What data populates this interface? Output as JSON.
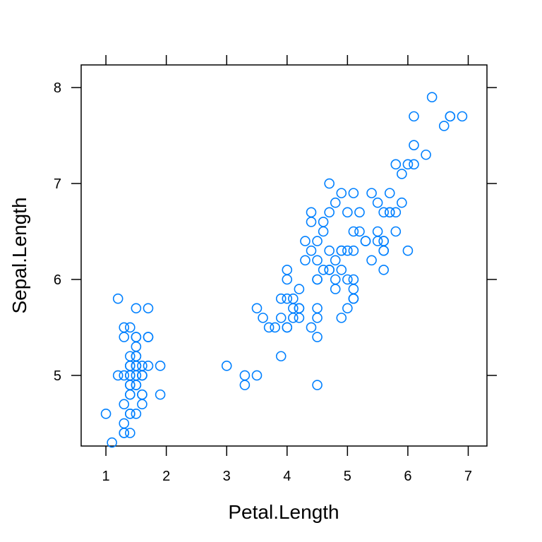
{
  "chart_data": {
    "type": "scatter",
    "title": "",
    "xlabel": "Petal.Length",
    "ylabel": "Sepal.Length",
    "xlim": [
      0.59,
      7.31
    ],
    "ylim": [
      4.264,
      8.236
    ],
    "x_ticks": [
      1,
      2,
      3,
      4,
      5,
      6,
      7
    ],
    "y_ticks": [
      5,
      6,
      7,
      8
    ],
    "x_tick_labels": [
      "1",
      "2",
      "3",
      "4",
      "5",
      "6",
      "7"
    ],
    "y_tick_labels": [
      "5",
      "6",
      "7",
      "8"
    ],
    "grid": false,
    "marker": "open-circle",
    "color": "#0080ff",
    "points": [
      [
        1.4,
        5.1
      ],
      [
        1.4,
        4.9
      ],
      [
        1.3,
        4.7
      ],
      [
        1.5,
        4.6
      ],
      [
        1.4,
        5.0
      ],
      [
        1.7,
        5.4
      ],
      [
        1.4,
        4.6
      ],
      [
        1.5,
        5.0
      ],
      [
        1.4,
        4.4
      ],
      [
        1.5,
        4.9
      ],
      [
        1.5,
        5.4
      ],
      [
        1.6,
        4.8
      ],
      [
        1.4,
        4.8
      ],
      [
        1.1,
        4.3
      ],
      [
        1.2,
        5.8
      ],
      [
        1.5,
        5.7
      ],
      [
        1.3,
        5.4
      ],
      [
        1.4,
        5.1
      ],
      [
        1.7,
        5.7
      ],
      [
        1.5,
        5.1
      ],
      [
        1.7,
        5.4
      ],
      [
        1.5,
        5.1
      ],
      [
        1.0,
        4.6
      ],
      [
        1.7,
        5.1
      ],
      [
        1.9,
        4.8
      ],
      [
        1.6,
        5.0
      ],
      [
        1.6,
        5.0
      ],
      [
        1.5,
        5.2
      ],
      [
        1.4,
        5.2
      ],
      [
        1.6,
        4.7
      ],
      [
        1.6,
        4.8
      ],
      [
        1.5,
        5.4
      ],
      [
        1.5,
        5.2
      ],
      [
        1.4,
        5.5
      ],
      [
        1.5,
        4.9
      ],
      [
        1.2,
        5.0
      ],
      [
        1.3,
        5.5
      ],
      [
        1.4,
        4.9
      ],
      [
        1.3,
        4.4
      ],
      [
        1.5,
        5.1
      ],
      [
        1.3,
        5.0
      ],
      [
        1.3,
        4.5
      ],
      [
        1.3,
        4.4
      ],
      [
        1.6,
        5.0
      ],
      [
        1.9,
        5.1
      ],
      [
        1.4,
        4.8
      ],
      [
        1.6,
        5.1
      ],
      [
        1.4,
        4.6
      ],
      [
        1.5,
        5.3
      ],
      [
        1.4,
        5.0
      ],
      [
        4.7,
        7.0
      ],
      [
        4.5,
        6.4
      ],
      [
        4.9,
        6.9
      ],
      [
        4.0,
        5.5
      ],
      [
        4.6,
        6.5
      ],
      [
        4.5,
        5.7
      ],
      [
        4.7,
        6.3
      ],
      [
        3.3,
        4.9
      ],
      [
        4.6,
        6.6
      ],
      [
        3.9,
        5.2
      ],
      [
        3.5,
        5.0
      ],
      [
        4.2,
        5.9
      ],
      [
        4.0,
        6.0
      ],
      [
        4.7,
        6.1
      ],
      [
        3.6,
        5.6
      ],
      [
        4.4,
        6.7
      ],
      [
        4.5,
        5.6
      ],
      [
        4.1,
        5.8
      ],
      [
        4.5,
        6.2
      ],
      [
        3.9,
        5.6
      ],
      [
        4.8,
        5.9
      ],
      [
        4.0,
        6.1
      ],
      [
        4.9,
        6.3
      ],
      [
        4.7,
        6.1
      ],
      [
        4.3,
        6.4
      ],
      [
        4.4,
        6.6
      ],
      [
        4.8,
        6.8
      ],
      [
        5.0,
        6.7
      ],
      [
        4.5,
        6.0
      ],
      [
        3.5,
        5.7
      ],
      [
        3.8,
        5.5
      ],
      [
        3.7,
        5.5
      ],
      [
        3.9,
        5.8
      ],
      [
        5.1,
        6.0
      ],
      [
        4.5,
        5.4
      ],
      [
        4.5,
        6.0
      ],
      [
        4.7,
        6.7
      ],
      [
        4.4,
        6.3
      ],
      [
        4.1,
        5.6
      ],
      [
        4.0,
        5.5
      ],
      [
        4.4,
        5.5
      ],
      [
        4.6,
        6.1
      ],
      [
        4.0,
        5.8
      ],
      [
        3.3,
        5.0
      ],
      [
        4.2,
        5.6
      ],
      [
        4.2,
        5.7
      ],
      [
        4.2,
        5.7
      ],
      [
        4.3,
        6.2
      ],
      [
        3.0,
        5.1
      ],
      [
        4.1,
        5.7
      ],
      [
        6.0,
        6.3
      ],
      [
        5.1,
        5.8
      ],
      [
        5.9,
        7.1
      ],
      [
        5.6,
        6.3
      ],
      [
        5.8,
        6.5
      ],
      [
        6.6,
        7.6
      ],
      [
        4.5,
        4.9
      ],
      [
        6.3,
        7.3
      ],
      [
        5.8,
        6.7
      ],
      [
        6.1,
        7.2
      ],
      [
        5.1,
        6.5
      ],
      [
        5.3,
        6.4
      ],
      [
        5.5,
        6.8
      ],
      [
        5.0,
        5.7
      ],
      [
        5.1,
        5.8
      ],
      [
        5.3,
        6.4
      ],
      [
        5.5,
        6.5
      ],
      [
        6.7,
        7.7
      ],
      [
        6.9,
        7.7
      ],
      [
        5.0,
        6.0
      ],
      [
        5.7,
        6.9
      ],
      [
        4.9,
        5.6
      ],
      [
        6.7,
        7.7
      ],
      [
        4.9,
        6.3
      ],
      [
        5.7,
        6.7
      ],
      [
        6.0,
        7.2
      ],
      [
        4.8,
        6.2
      ],
      [
        4.9,
        6.1
      ],
      [
        5.6,
        6.4
      ],
      [
        5.8,
        7.2
      ],
      [
        6.1,
        7.4
      ],
      [
        6.4,
        7.9
      ],
      [
        5.6,
        6.4
      ],
      [
        5.1,
        6.3
      ],
      [
        5.6,
        6.1
      ],
      [
        6.1,
        7.7
      ],
      [
        5.6,
        6.3
      ],
      [
        5.5,
        6.4
      ],
      [
        4.8,
        6.0
      ],
      [
        5.4,
        6.9
      ],
      [
        5.6,
        6.7
      ],
      [
        5.1,
        6.9
      ],
      [
        5.1,
        5.8
      ],
      [
        5.9,
        6.8
      ],
      [
        5.7,
        6.7
      ],
      [
        5.2,
        6.7
      ],
      [
        5.0,
        6.3
      ],
      [
        5.2,
        6.5
      ],
      [
        5.4,
        6.2
      ],
      [
        5.1,
        5.9
      ]
    ]
  }
}
